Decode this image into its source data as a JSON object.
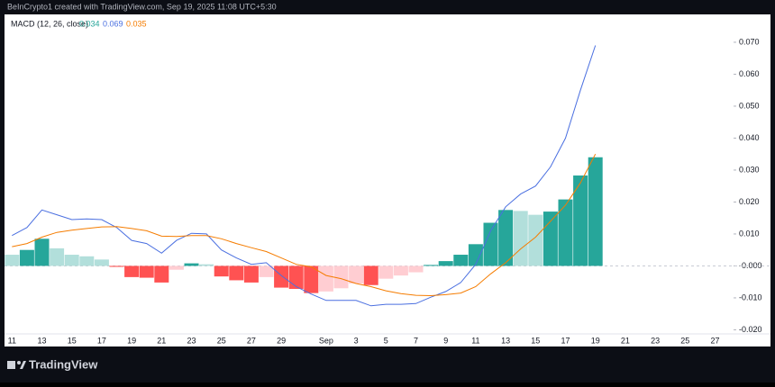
{
  "header": "BeInCrypto1 created with TradingView.com, Sep 19, 2025 11:08 UTC+5:30",
  "footer": "TradingView",
  "chart_data": {
    "type": "macd",
    "legend": {
      "label": "MACD (12, 26, close)",
      "values": [
        0.034,
        0.069,
        0.035
      ]
    },
    "categories": [
      "11",
      null,
      "13",
      null,
      "15",
      null,
      "17",
      null,
      "19",
      null,
      "21",
      null,
      "23",
      null,
      "25",
      null,
      "27",
      null,
      "29",
      null,
      null,
      "Sep",
      null,
      "3",
      null,
      "5",
      null,
      "7",
      null,
      "9",
      null,
      "11",
      null,
      "13",
      null,
      "15",
      null,
      "17",
      null,
      "19",
      null,
      "21",
      null,
      "23",
      null,
      "25",
      null,
      "27"
    ],
    "series": [
      {
        "kind": "histogram",
        "values": [
          0.0035,
          0.005,
          0.0085,
          0.0055,
          0.0035,
          0.003,
          0.002,
          -0.0003,
          -0.0035,
          -0.0037,
          -0.0052,
          -0.0012,
          0.0008,
          0.0005,
          -0.0033,
          -0.0045,
          -0.0052,
          -0.0035,
          -0.0068,
          -0.0072,
          -0.0085,
          -0.008,
          -0.007,
          -0.0055,
          -0.006,
          -0.004,
          -0.003,
          -0.002,
          0.0003,
          0.0015,
          0.0035,
          0.0068,
          0.0135,
          0.0175,
          0.0172,
          0.016,
          0.017,
          0.0208,
          0.0283,
          0.034,
          null,
          null,
          null,
          null,
          null,
          null,
          null,
          null
        ],
        "colors": [
          "#b2dfdb",
          "#26a69a",
          "#26a69a",
          "#b2dfdb",
          "#b2dfdb",
          "#b2dfdb",
          "#b2dfdb",
          "#ff5252",
          "#ff5252",
          "#ff5252",
          "#ff5252",
          "#ffcdd2",
          "#26a69a",
          "#b2dfdb",
          "#ff5252",
          "#ff5252",
          "#ff5252",
          "#ffcdd2",
          "#ff5252",
          "#ff5252",
          "#ff5252",
          "#ffcdd2",
          "#ffcdd2",
          "#ffcdd2",
          "#ff5252",
          "#ffcdd2",
          "#ffcdd2",
          "#ffcdd2",
          "#26a69a",
          "#26a69a",
          "#26a69a",
          "#26a69a",
          "#26a69a",
          "#26a69a",
          "#b2dfdb",
          "#b2dfdb",
          "#26a69a",
          "#26a69a",
          "#26a69a",
          "#26a69a",
          null,
          null,
          null,
          null,
          null,
          null,
          null,
          null
        ],
        "color": "#26a69a"
      },
      {
        "kind": "line",
        "color": "#4a6fe0",
        "values": [
          0.0095,
          0.012,
          0.0175,
          0.016,
          0.0145,
          0.0147,
          0.0145,
          0.012,
          0.008,
          0.007,
          0.004,
          0.008,
          0.0102,
          0.01,
          0.005,
          0.0025,
          0.0005,
          0.001,
          -0.003,
          -0.0065,
          -0.0088,
          -0.0108,
          -0.0108,
          -0.0108,
          -0.0125,
          -0.012,
          -0.012,
          -0.0118,
          -0.0098,
          -0.008,
          -0.0052,
          0.0005,
          0.011,
          0.0185,
          0.0225,
          0.025,
          0.031,
          0.04,
          0.055,
          0.069,
          null,
          null,
          null,
          null,
          null,
          null,
          null,
          null
        ]
      },
      {
        "kind": "line",
        "color": "#f57c00",
        "values": [
          0.006,
          0.007,
          0.009,
          0.0105,
          0.0112,
          0.0117,
          0.0122,
          0.0123,
          0.0117,
          0.011,
          0.0093,
          0.0092,
          0.0095,
          0.0095,
          0.0085,
          0.007,
          0.0057,
          0.0045,
          0.0025,
          0.0005,
          -0.0003,
          -0.003,
          -0.004,
          -0.0055,
          -0.0065,
          -0.0078,
          -0.0087,
          -0.0092,
          -0.0093,
          -0.009,
          -0.0085,
          -0.0065,
          -0.0025,
          0.001,
          0.0053,
          0.009,
          0.014,
          0.019,
          0.026,
          0.035,
          null,
          null,
          null,
          null,
          null,
          null,
          null,
          null
        ]
      }
    ],
    "ylim": [
      -0.021,
      0.079
    ],
    "yticks": [
      {
        "value": 0.07,
        "label": "0.070"
      },
      {
        "value": 0.06,
        "label": "0.060"
      },
      {
        "value": 0.05,
        "label": "0.050"
      },
      {
        "value": 0.04,
        "label": "0.040"
      },
      {
        "value": 0.03,
        "label": "0.030"
      },
      {
        "value": 0.02,
        "label": "0.020"
      },
      {
        "value": 0.01,
        "label": "0.010"
      },
      {
        "value": 0,
        "label": "-0.000"
      },
      {
        "value": -0.01,
        "label": "-0.010"
      },
      {
        "value": -0.02,
        "label": "-0.020"
      }
    ],
    "zero_line": true
  }
}
